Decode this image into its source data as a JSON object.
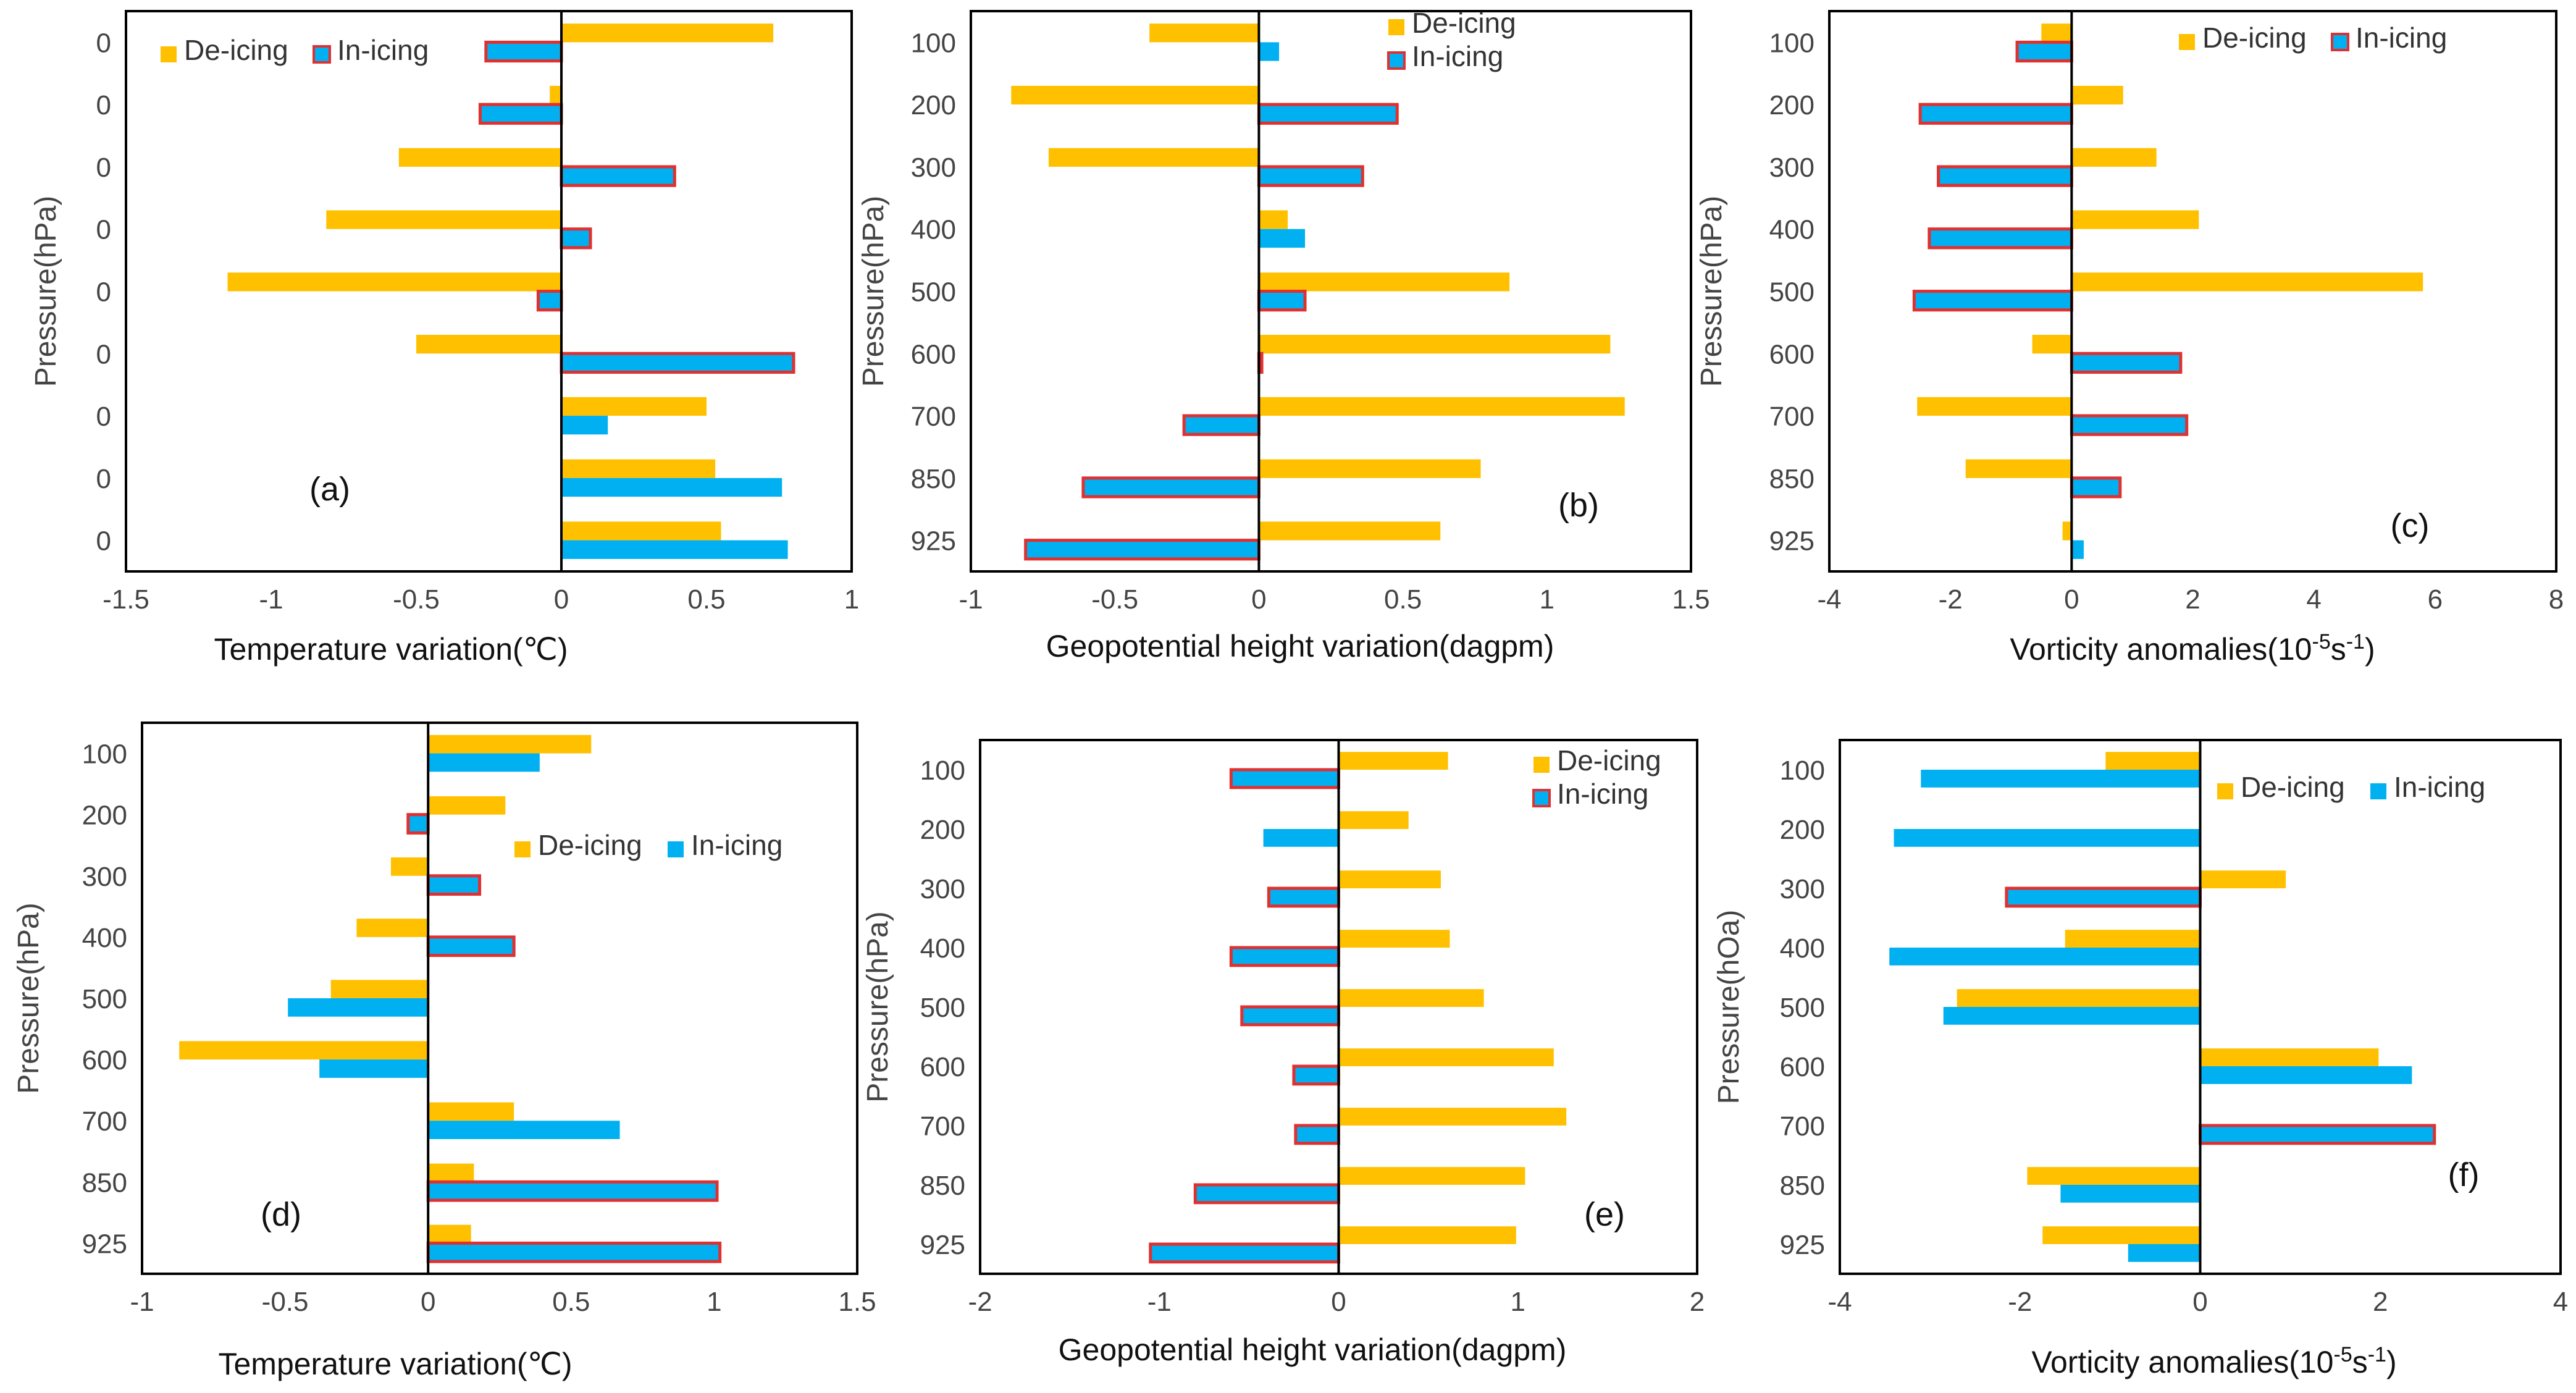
{
  "figure": {
    "colors": {
      "deicing": "#FFC000",
      "inicing": "#00B0F0",
      "outline": "#E03030",
      "axis": "#000000"
    }
  },
  "chart_data": [
    {
      "panel": "(a)",
      "type": "bar",
      "orientation": "horizontal",
      "categories": [
        "0",
        "0",
        "0",
        "0",
        "0",
        "0",
        "0",
        "0",
        "0"
      ],
      "series": [
        {
          "name": "De-icing",
          "values": [
            0.73,
            -0.04,
            -0.56,
            -0.81,
            -1.15,
            -0.5,
            0.5,
            0.53,
            0.55
          ]
        },
        {
          "name": "In-icing",
          "values": [
            -0.26,
            -0.28,
            0.39,
            0.1,
            -0.08,
            0.8,
            0.16,
            0.76,
            0.78
          ]
        }
      ],
      "outlined_inicing": [
        true,
        true,
        true,
        true,
        true,
        true,
        false,
        false,
        false
      ],
      "xlim": [
        -1.5,
        1
      ],
      "xticks": [
        "-1.5",
        "-1",
        "-0.5",
        "0",
        "0.5",
        "1"
      ],
      "xlabel": "Temperature variation(℃)",
      "ylabel": "Pressure(hPa)",
      "legend": {
        "placement": "top-left",
        "deicing": "De-icing",
        "inicing": "In-icing",
        "inicing_outlined": true
      }
    },
    {
      "panel": "(b)",
      "type": "bar",
      "orientation": "horizontal",
      "categories": [
        "100",
        "200",
        "300",
        "400",
        "500",
        "600",
        "700",
        "850",
        "925"
      ],
      "series": [
        {
          "name": "De-icing",
          "values": [
            -0.38,
            -0.86,
            -0.73,
            0.1,
            0.87,
            1.22,
            1.27,
            0.77,
            0.63
          ]
        },
        {
          "name": "In-icing",
          "values": [
            0.07,
            0.48,
            0.36,
            0.16,
            0.16,
            0.01,
            -0.26,
            -0.61,
            -0.81
          ]
        }
      ],
      "outlined_inicing": [
        false,
        true,
        true,
        false,
        true,
        true,
        true,
        true,
        true
      ],
      "xlim": [
        -1,
        1.5
      ],
      "xticks": [
        "-1",
        "-0.5",
        "0",
        "0.5",
        "1",
        "1.5"
      ],
      "xlabel": "Geopotential height variation(dagpm)",
      "ylabel": "Pressure(hPa)",
      "legend": {
        "placement": "top-right",
        "deicing": "De-icing",
        "inicing": "In-icing",
        "inicing_outlined": true
      }
    },
    {
      "panel": "(c)",
      "type": "bar",
      "orientation": "horizontal",
      "categories": [
        "100",
        "200",
        "300",
        "400",
        "500",
        "600",
        "700",
        "850",
        "925"
      ],
      "series": [
        {
          "name": "De-icing",
          "values": [
            -0.5,
            0.85,
            1.4,
            2.1,
            5.8,
            -0.65,
            -2.55,
            -1.75,
            -0.15
          ]
        },
        {
          "name": "In-icing",
          "values": [
            -0.9,
            -2.5,
            -2.2,
            -2.35,
            -2.6,
            1.8,
            1.9,
            0.8,
            0.2
          ]
        }
      ],
      "outlined_inicing": [
        true,
        true,
        true,
        true,
        true,
        true,
        true,
        true,
        false
      ],
      "xlim": [
        -4,
        8
      ],
      "xticks": [
        "-4",
        "-2",
        "0",
        "2",
        "4",
        "6",
        "8"
      ],
      "xlabel_main": "Vorticity anomalies(10",
      "xlabel_exp1": "-5",
      "xlabel_mid": "s",
      "xlabel_exp2": "-1",
      "xlabel_end": ")",
      "ylabel": "Pressure(hPa)",
      "legend": {
        "placement": "top-center",
        "deicing": "De-icing",
        "inicing": "In-icing",
        "inicing_outlined": true
      }
    },
    {
      "panel": "(d)",
      "type": "bar",
      "orientation": "horizontal",
      "categories": [
        "100",
        "200",
        "300",
        "400",
        "500",
        "600",
        "700",
        "850",
        "925"
      ],
      "series": [
        {
          "name": "De-icing",
          "values": [
            0.57,
            0.27,
            -0.13,
            -0.25,
            -0.34,
            -0.87,
            0.3,
            0.16,
            0.15
          ]
        },
        {
          "name": "In-icing",
          "values": [
            0.39,
            -0.07,
            0.18,
            0.3,
            -0.49,
            -0.38,
            0.67,
            1.01,
            1.02
          ]
        }
      ],
      "outlined_inicing": [
        false,
        true,
        true,
        true,
        false,
        false,
        false,
        true,
        true
      ],
      "xlim": [
        -1,
        1.5
      ],
      "xticks": [
        "-1",
        "-0.5",
        "0",
        "0.5",
        "1",
        "1.5"
      ],
      "xlabel": "Temperature variation(℃)",
      "ylabel": "Pressure(hPa)",
      "legend": {
        "placement": "top-right",
        "deicing": "De-icing",
        "inicing": "In-icing",
        "inicing_outlined": false
      }
    },
    {
      "panel": "(e)",
      "type": "bar",
      "orientation": "horizontal",
      "categories": [
        "100",
        "200",
        "300",
        "400",
        "500",
        "600",
        "700",
        "850",
        "925"
      ],
      "series": [
        {
          "name": "De-icing",
          "values": [
            0.61,
            0.39,
            0.57,
            0.62,
            0.81,
            1.2,
            1.27,
            1.04,
            0.99
          ]
        },
        {
          "name": "In-icing",
          "values": [
            -0.6,
            -0.42,
            -0.39,
            -0.6,
            -0.54,
            -0.25,
            -0.24,
            -0.8,
            -1.05
          ]
        }
      ],
      "outlined_inicing": [
        true,
        false,
        true,
        true,
        true,
        true,
        true,
        true,
        true
      ],
      "xlim": [
        -2,
        2
      ],
      "xticks": [
        "-2",
        "-1",
        "0",
        "1",
        "2"
      ],
      "xlabel": "Geopotential height variation(dagpm)",
      "ylabel": "Pressure(hPa)",
      "legend": {
        "placement": "top-right",
        "deicing": "De-icing",
        "inicing": "In-icing",
        "inicing_outlined": true
      }
    },
    {
      "panel": "(f)",
      "type": "bar",
      "orientation": "horizontal",
      "categories": [
        "100",
        "200",
        "300",
        "400",
        "500",
        "600",
        "700",
        "850",
        "925"
      ],
      "series": [
        {
          "name": "De-icing",
          "values": [
            -1.05,
            0,
            0.95,
            -1.5,
            -2.7,
            1.98,
            0,
            -1.92,
            -1.75
          ]
        },
        {
          "name": "In-icing",
          "values": [
            -3.1,
            -3.4,
            -2.15,
            -3.45,
            -2.85,
            2.35,
            2.6,
            -1.55,
            -0.8
          ]
        }
      ],
      "outlined_inicing": [
        false,
        false,
        true,
        false,
        false,
        false,
        true,
        false,
        false
      ],
      "xlim": [
        -4,
        4
      ],
      "xticks": [
        "-4",
        "-2",
        "0",
        "2",
        "4"
      ],
      "xlabel_main": "Vorticity anomalies(10",
      "xlabel_exp1": "-5",
      "xlabel_mid": "s",
      "xlabel_exp2": "-1",
      "xlabel_end": ")",
      "ylabel": "Pressure(hOa)",
      "legend": {
        "placement": "top-right",
        "deicing": "De-icing",
        "inicing": "In-icing",
        "inicing_outlined": false
      }
    }
  ]
}
